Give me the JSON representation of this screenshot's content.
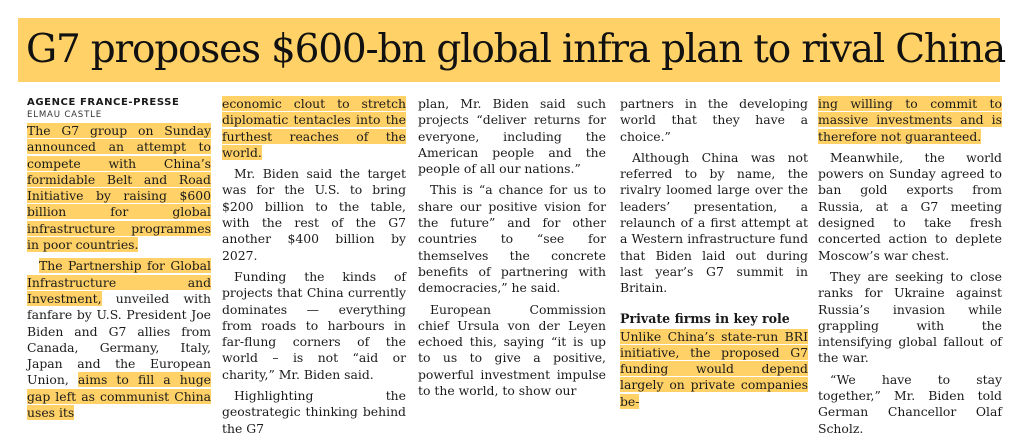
{
  "headline": "G7 proposes $600-bn global infra plan to rival China",
  "byline": "AGENCE FRANCE-PRESSE",
  "location": "ELMAU CASTLE",
  "colors": {
    "highlight": "#ffd166"
  },
  "col1": {
    "p1": "The G7 group on Sunday announced an attempt to compete with China’s formidable Belt and Road Initiative by raising $600 billion for global infrastructure programmes in poor countries.",
    "p2_hl": "The Partnership for Global Infrastructure and Investment,",
    "p2_rest": " unveiled with fanfare by U.S. President Joe Biden and G7 allies from Canada, Germany, Italy, Japan and the European Union, ",
    "p2_hl2": "aims to fill a huge gap left as communist China uses its"
  },
  "col2": {
    "p1": "economic clout to stretch diplomatic tentacles into the furthest reaches of the world.",
    "p2": "Mr. Biden said the target was for the U.S. to bring $200 billion to the table, with the rest of the G7 another $400 billion by 2027.",
    "p3": "Funding the kinds of projects that China currently dominates — everything from roads to harbours in far-flung corners of the world – is not “aid or charity,” Mr. Biden said.",
    "p4": "Highlighting the geostrategic thinking behind the G7"
  },
  "col3": {
    "p1": "plan, Mr. Biden said such projects “deliver returns for everyone, including the American people and the people of all our nations.”",
    "p2": "This is “a chance for us to share our positive vision for the future” and for other countries to “see for themselves the concrete benefits of partnering with democracies,” he said.",
    "p3": "European Commission chief Ursula von der Leyen echoed this, saying “it is up to us to give a positive, powerful investment impulse to the world, to show our"
  },
  "col4": {
    "p1": "partners in the developing world that they have a choice.”",
    "p2": "Although China was not referred to by name, the rivalry loomed large over the leaders’ presentation, a relaunch of a first attempt at a Western infrastructure fund that Biden laid out during last year’s G7 summit in Britain.",
    "subhead": "Private firms in key role",
    "p3": "Unlike China’s state-run BRI initiative, the proposed G7 funding would depend largely on private companies be-"
  },
  "col5": {
    "p1": "ing willing to commit to massive investments and is therefore not guaranteed.",
    "p2": "Meanwhile, the world powers on Sunday agreed to ban gold exports from Russia, at a G7 meeting designed to take fresh concerted action to deplete Moscow’s war chest.",
    "p3": "They are seeking to close ranks for Ukraine against Russia’s invasion while grappling with the intensifying global fallout of the war.",
    "p4": "“We have to stay together,” Mr. Biden told German Chancellor Olaf Scholz."
  }
}
